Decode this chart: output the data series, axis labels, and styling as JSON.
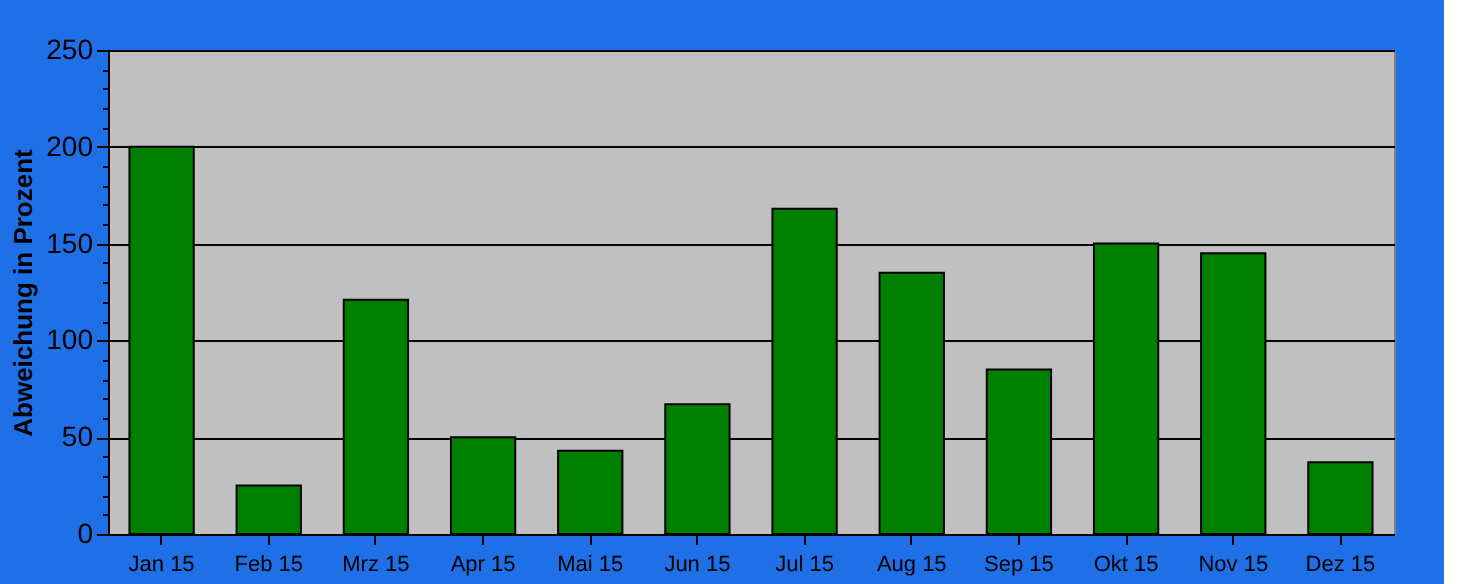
{
  "chart_data": {
    "type": "bar",
    "ylabel": "Abweichung in Prozent",
    "categories": [
      "Jan 15",
      "Feb 15",
      "Mrz 15",
      "Apr 15",
      "Mai 15",
      "Jun 15",
      "Jul 15",
      "Aug 15",
      "Sep 15",
      "Okt 15",
      "Nov 15",
      "Dez 15"
    ],
    "values": [
      200,
      25,
      121,
      50,
      43,
      67,
      168,
      135,
      85,
      150,
      145,
      37
    ],
    "color": "#008000",
    "ylim": [
      0,
      250
    ],
    "yticks": [
      0,
      {
        "value": 10,
        "label": null
      },
      {
        "value": 20,
        "label": null
      },
      {
        "value": 30,
        "label": null
      },
      {
        "value": 40,
        "label": null
      },
      50,
      {
        "value": 60,
        "label": null
      },
      {
        "value": 70,
        "label": null
      },
      {
        "value": 80,
        "label": null
      },
      {
        "value": 90,
        "label": null
      },
      100,
      {
        "value": 110,
        "label": null
      },
      {
        "value": 120,
        "label": null
      },
      {
        "value": 130,
        "label": null
      },
      {
        "value": 140,
        "label": null
      },
      150,
      {
        "value": 160,
        "label": null
      },
      {
        "value": 170,
        "label": null
      },
      {
        "value": 180,
        "label": null
      },
      {
        "value": 190,
        "label": null
      },
      200,
      {
        "value": 210,
        "label": null
      },
      {
        "value": 220,
        "label": null
      },
      {
        "value": 230,
        "label": null
      },
      {
        "value": 240,
        "label": null
      },
      250
    ],
    "grid": "y"
  }
}
